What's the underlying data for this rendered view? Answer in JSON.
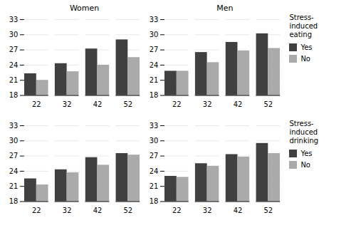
{
  "chart_data": [
    {
      "type": "bar",
      "title": "Women",
      "categories": [
        "22",
        "32",
        "42",
        "52"
      ],
      "series": [
        {
          "name": "Yes",
          "color": "#404040",
          "values": [
            22.3,
            24.3,
            27.2,
            29.0
          ]
        },
        {
          "name": "No",
          "color": "#aaaaaa",
          "values": [
            21.0,
            22.7,
            24.0,
            25.5
          ]
        }
      ],
      "ylim": [
        18,
        33
      ],
      "yticks": [
        18,
        21,
        24,
        27,
        30,
        33
      ],
      "grid": true
    },
    {
      "type": "bar",
      "title": "Men",
      "categories": [
        "22",
        "32",
        "42",
        "52"
      ],
      "series": [
        {
          "name": "Yes",
          "color": "#404040",
          "values": [
            22.8,
            26.5,
            28.5,
            30.2
          ]
        },
        {
          "name": "No",
          "color": "#aaaaaa",
          "values": [
            22.8,
            24.5,
            26.8,
            27.3
          ]
        }
      ],
      "ylim": [
        18,
        33
      ],
      "yticks": [
        18,
        21,
        24,
        27,
        30,
        33
      ],
      "grid": true,
      "legend": "right",
      "legend_title": "Stress-\ninduced\neating"
    },
    {
      "type": "bar",
      "categories": [
        "22",
        "32",
        "42",
        "52"
      ],
      "series": [
        {
          "name": "Yes",
          "color": "#404040",
          "values": [
            22.5,
            24.3,
            26.7,
            27.5
          ]
        },
        {
          "name": "No",
          "color": "#aaaaaa",
          "values": [
            21.3,
            23.7,
            25.2,
            27.2
          ]
        }
      ],
      "ylim": [
        18,
        33
      ],
      "yticks": [
        18,
        21,
        24,
        27,
        30,
        33
      ],
      "grid": true
    },
    {
      "type": "bar",
      "categories": [
        "22",
        "32",
        "42",
        "52"
      ],
      "series": [
        {
          "name": "Yes",
          "color": "#404040",
          "values": [
            23.0,
            25.5,
            27.3,
            29.5
          ]
        },
        {
          "name": "No",
          "color": "#aaaaaa",
          "values": [
            22.8,
            25.0,
            26.8,
            27.5
          ]
        }
      ],
      "ylim": [
        18,
        33
      ],
      "yticks": [
        18,
        21,
        24,
        27,
        30,
        33
      ],
      "grid": true,
      "legend": "right",
      "legend_title": "Stress-\ninduced\ndrinking"
    }
  ]
}
